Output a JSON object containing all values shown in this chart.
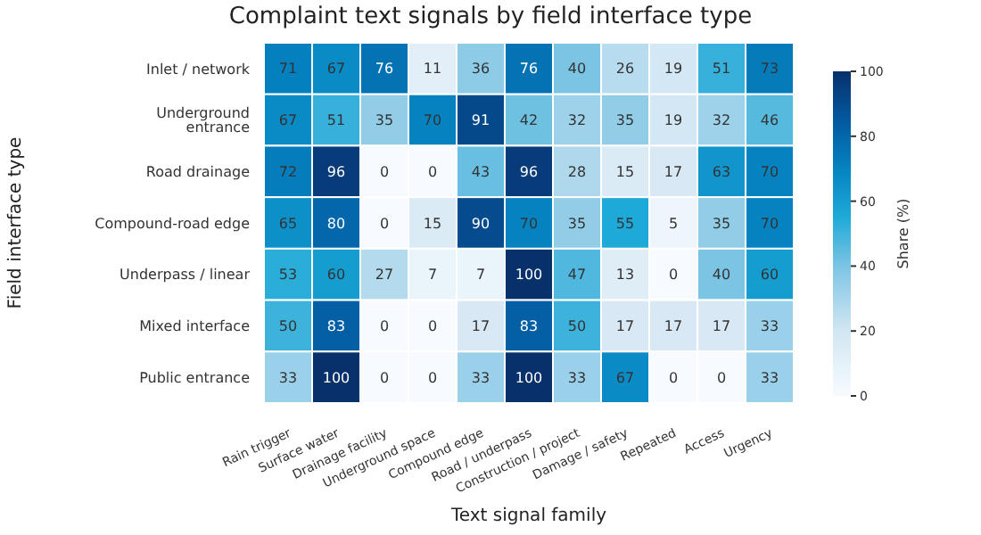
{
  "chart_data": {
    "type": "heatmap",
    "title": "Complaint text signals by field interface type",
    "xlabel": "Text signal family",
    "ylabel": "Field interface type",
    "clabel": "Share (%)",
    "categories": [
      "Rain trigger",
      "Surface water",
      "Drainage facility",
      "Underground space",
      "Compound edge",
      "Road / underpass",
      "Construction / project",
      "Damage / safety",
      "Repeated",
      "Access",
      "Urgency"
    ],
    "y_categories": [
      "Inlet / network",
      "Underground entrance",
      "Road drainage",
      "Compound-road edge",
      "Underpass / linear",
      "Mixed interface",
      "Public entrance"
    ],
    "cells": [
      [
        71,
        67,
        76,
        11,
        36,
        76,
        40,
        26,
        19,
        51,
        73
      ],
      [
        67,
        51,
        35,
        70,
        91,
        42,
        32,
        35,
        19,
        32,
        46
      ],
      [
        72,
        96,
        0,
        0,
        43,
        96,
        28,
        15,
        17,
        63,
        70
      ],
      [
        65,
        80,
        0,
        15,
        90,
        70,
        35,
        55,
        5,
        35,
        70
      ],
      [
        53,
        60,
        27,
        7,
        7,
        100,
        47,
        13,
        0,
        40,
        60
      ],
      [
        50,
        83,
        0,
        0,
        17,
        83,
        50,
        17,
        17,
        17,
        33
      ],
      [
        33,
        100,
        0,
        0,
        33,
        100,
        33,
        67,
        0,
        0,
        33
      ]
    ],
    "clim": [
      0,
      100
    ],
    "cticks": [
      0,
      20,
      40,
      60,
      80,
      100
    ],
    "data_labels": true
  }
}
